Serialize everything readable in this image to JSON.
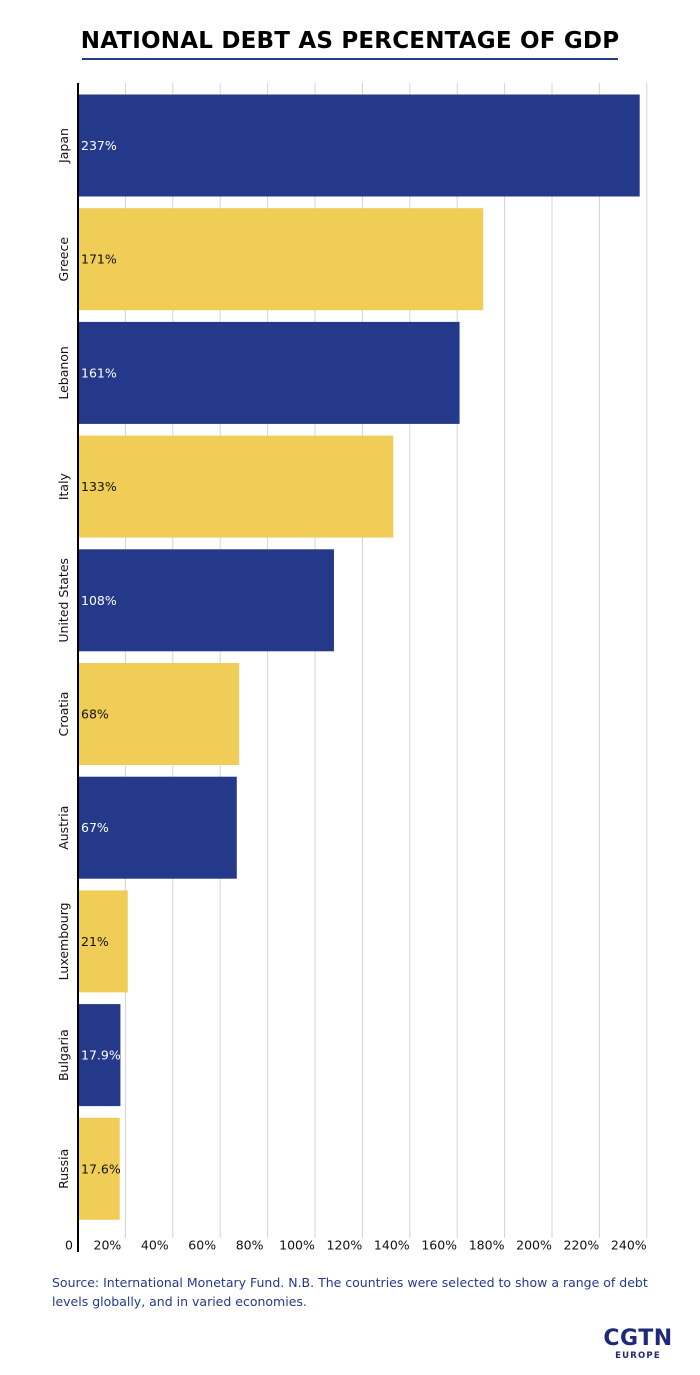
{
  "chart_data": {
    "type": "bar",
    "orientation": "horizontal",
    "title": "NATIONAL DEBT AS PERCENTAGE OF GDP",
    "xlabel": "",
    "ylabel": "",
    "categories": [
      "Japan",
      "Greece",
      "Lebanon",
      "Italy",
      "United States",
      "Croatia",
      "Austria",
      "Luxembourg",
      "Bulgaria",
      "Russia"
    ],
    "values": [
      237,
      171,
      161,
      133,
      108,
      68,
      67,
      21,
      17.9,
      17.6
    ],
    "value_labels": [
      "237%",
      "171%",
      "161%",
      "133%",
      "108%",
      "68%",
      "67%",
      "21%",
      "17.9%",
      "17.6%"
    ],
    "xlim": [
      0,
      240
    ],
    "x_ticks": [
      0,
      20,
      40,
      60,
      80,
      100,
      120,
      140,
      160,
      180,
      200,
      220,
      240
    ],
    "x_tick_labels": [
      "0",
      "20%",
      "40%",
      "60%",
      "80%",
      "100%",
      "120%",
      "140%",
      "160%",
      "180%",
      "200%",
      "220%",
      "240%"
    ],
    "grid": "vertical",
    "bar_colors": [
      "#243989",
      "#efcd57"
    ],
    "label_colors": [
      "#ffffff",
      "#111111"
    ]
  },
  "source": "Source: International Monetary Fund. N.B. The countries were selected to show a range of debt levels globally, and in varied economies.",
  "logo": {
    "main": "CGTN",
    "sub": "EUROPE"
  }
}
